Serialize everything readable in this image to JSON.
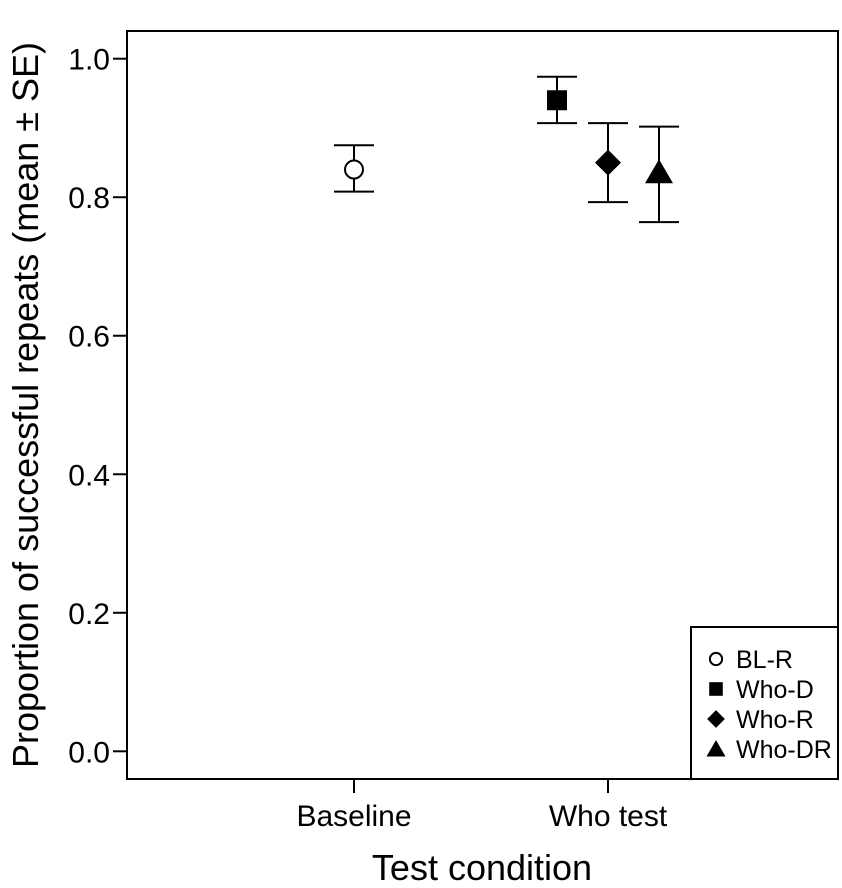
{
  "chart_data": {
    "type": "scatter",
    "xlabel": "Test condition",
    "ylabel": "Proportion of successful repeats (mean ± SE)",
    "ylim": [
      -0.04,
      1.04
    ],
    "yticks": [
      "0.0",
      "0.2",
      "0.4",
      "0.6",
      "0.8",
      "1.0"
    ],
    "categories": [
      "Baseline",
      "Who test"
    ],
    "grid": false,
    "legend_position": "bottom-right",
    "series": [
      {
        "name": "BL-R",
        "category": "Baseline",
        "offset": 0,
        "marker": "open-circle",
        "mean": 0.84,
        "lower": 0.808,
        "upper": 0.875
      },
      {
        "name": "Who-D",
        "category": "Who test",
        "offset": -1,
        "marker": "square",
        "mean": 0.94,
        "lower": 0.907,
        "upper": 0.974
      },
      {
        "name": "Who-R",
        "category": "Who test",
        "offset": 0,
        "marker": "diamond",
        "mean": 0.85,
        "lower": 0.793,
        "upper": 0.907
      },
      {
        "name": "Who-DR",
        "category": "Who test",
        "offset": 1,
        "marker": "triangle",
        "mean": 0.836,
        "lower": 0.764,
        "upper": 0.902
      }
    ]
  }
}
